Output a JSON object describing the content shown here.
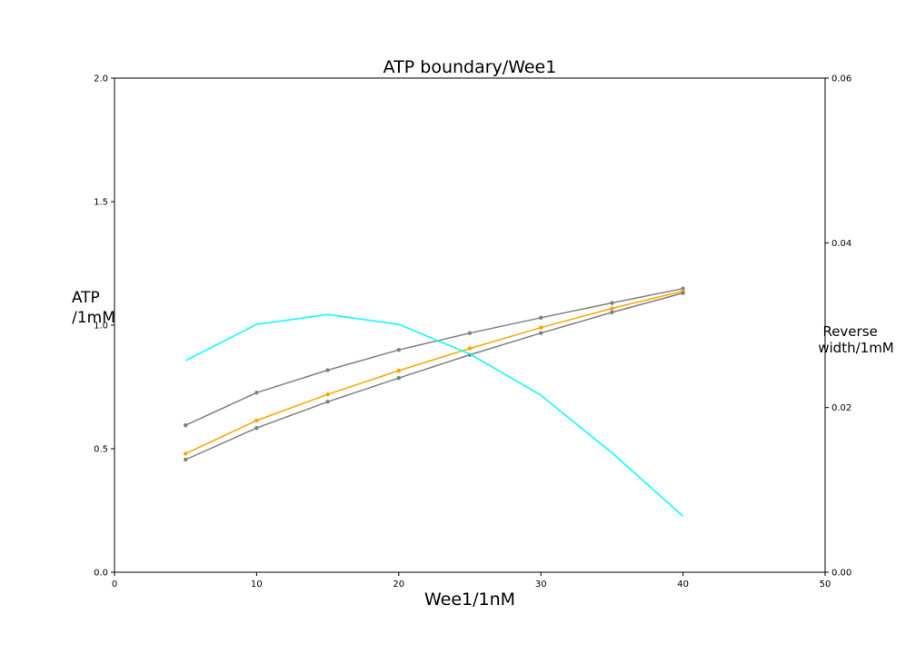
{
  "chart_data": {
    "type": "line",
    "title": "ATP boundary/Wee1",
    "xlabel": "Wee1/1nM",
    "ylabel_lines": [
      "ATP",
      "/1mM"
    ],
    "y2label_lines": [
      "Reverse",
      "width/1mM"
    ],
    "xlim": [
      0,
      50
    ],
    "ylim": [
      0,
      2.0
    ],
    "y2lim": [
      0,
      0.06
    ],
    "xticks": [
      "0",
      "10",
      "20",
      "30",
      "40",
      "50"
    ],
    "yticks": [
      "0.0",
      "0.5",
      "1.0",
      "1.5",
      "2.0"
    ],
    "y2ticks": [
      "0.00",
      "0.02",
      "0.04",
      "0.06"
    ],
    "grid": false,
    "x": [
      5,
      10,
      15,
      20,
      25,
      30,
      35,
      40
    ],
    "series": [
      {
        "axis": "left",
        "color": "#808080",
        "marker": true,
        "values": [
          0.595,
          0.727,
          0.818,
          0.9,
          0.968,
          1.03,
          1.09,
          1.148
        ]
      },
      {
        "axis": "left",
        "color": "#ffa500",
        "marker": true,
        "values": [
          0.48,
          0.614,
          0.72,
          0.816,
          0.906,
          0.99,
          1.068,
          1.138
        ]
      },
      {
        "axis": "left",
        "color": "#808080",
        "marker": true,
        "values": [
          0.456,
          0.584,
          0.69,
          0.786,
          0.88,
          0.968,
          1.052,
          1.13
        ]
      },
      {
        "axis": "right",
        "color": "#00ffff",
        "marker": false,
        "values": [
          0.0257,
          0.0301,
          0.0313,
          0.0301,
          0.0265,
          0.0215,
          0.0145,
          0.0068
        ]
      }
    ]
  }
}
